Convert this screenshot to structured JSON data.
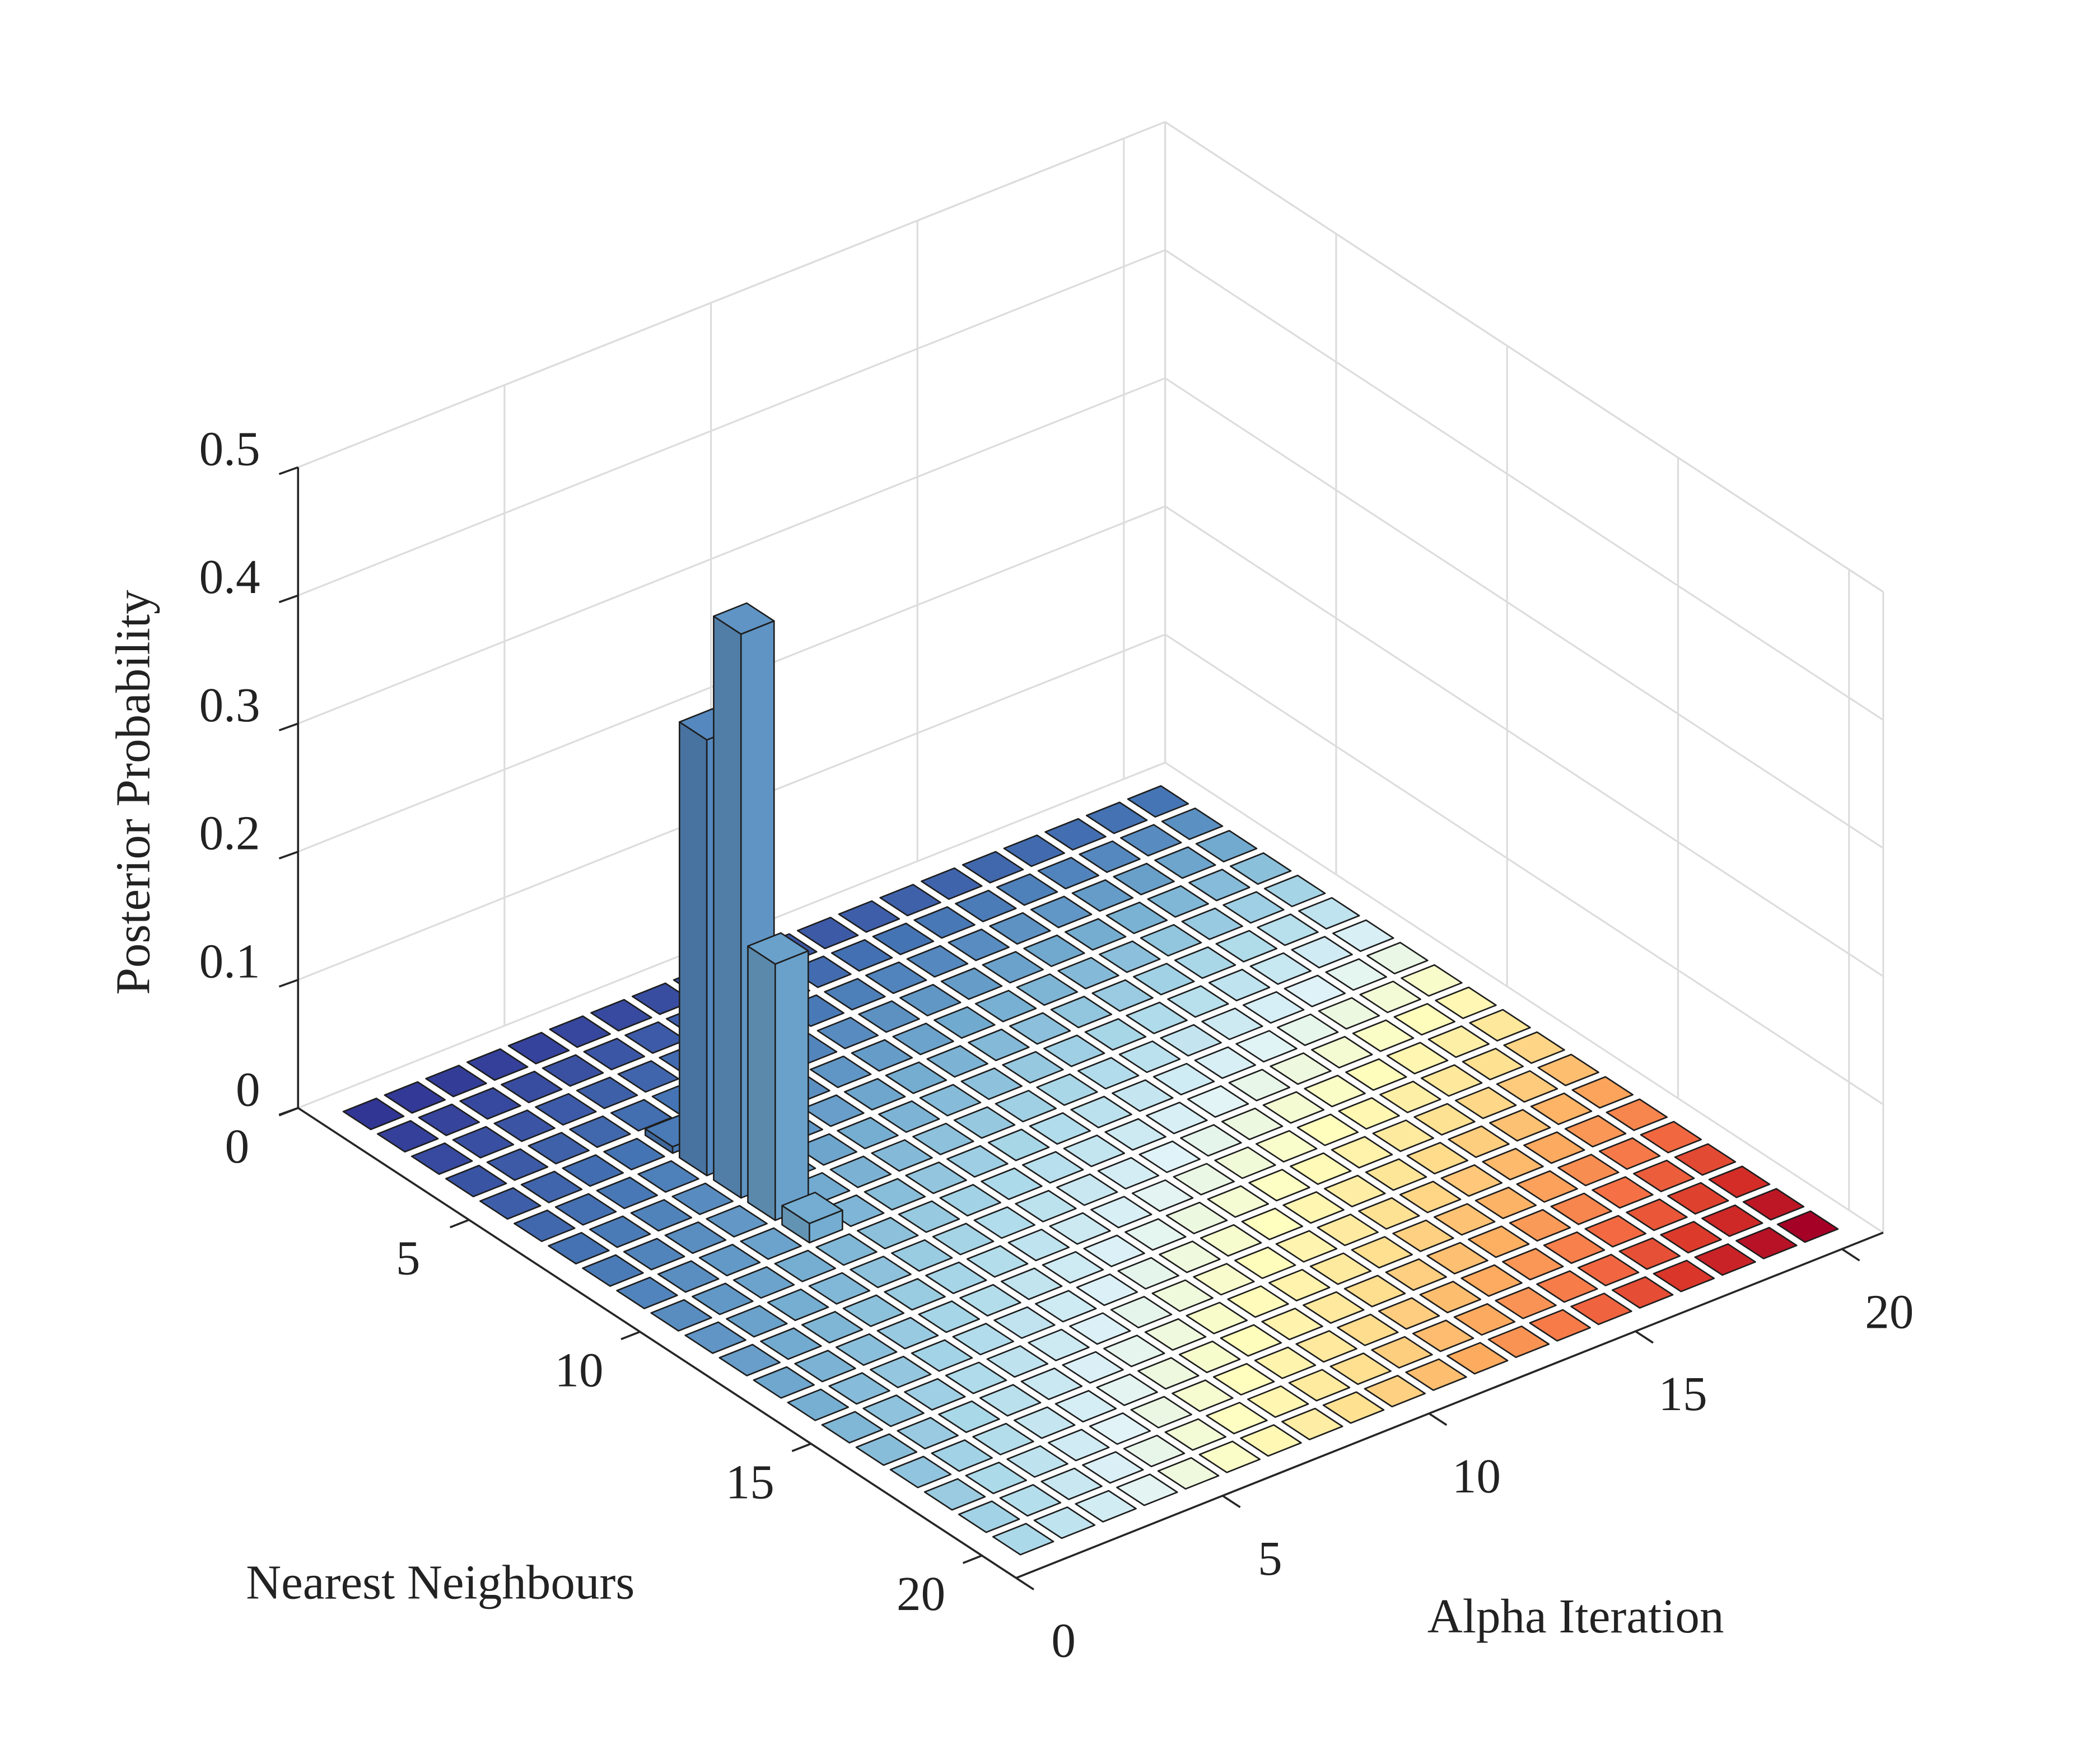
{
  "chart_data": {
    "type": "bar3",
    "xlabel": "Alpha Iteration",
    "ylabel": "Nearest Neighbours",
    "zlabel": "Posterior Probability",
    "x": [
      1,
      2,
      3,
      4,
      5,
      6,
      7,
      8,
      9,
      10,
      11,
      12,
      13,
      14,
      15,
      16,
      17,
      18,
      19,
      20
    ],
    "y": [
      1,
      2,
      3,
      4,
      5,
      6,
      7,
      8,
      9,
      10,
      11,
      12,
      13,
      14,
      15,
      16,
      17,
      18,
      19,
      20
    ],
    "z": [
      [
        0,
        0,
        0,
        0,
        0,
        0,
        0,
        0,
        0,
        0,
        0,
        0,
        0,
        0,
        0,
        0,
        0,
        0,
        0,
        0
      ],
      [
        0,
        0,
        0,
        0,
        0,
        0,
        0,
        0,
        0,
        0,
        0,
        0,
        0,
        0,
        0,
        0,
        0,
        0,
        0,
        0
      ],
      [
        0,
        0,
        0,
        0,
        0,
        0,
        0,
        0,
        0,
        0,
        0,
        0,
        0,
        0,
        0,
        0,
        0,
        0,
        0,
        0
      ],
      [
        0,
        0,
        0,
        0,
        0,
        0,
        0,
        0,
        0,
        0,
        0,
        0,
        0,
        0,
        0,
        0,
        0,
        0,
        0,
        0
      ],
      [
        0,
        0,
        0,
        0,
        0.005,
        0,
        0,
        0,
        0,
        0,
        0,
        0,
        0,
        0,
        0,
        0,
        0,
        0,
        0,
        0
      ],
      [
        0,
        0,
        0,
        0,
        0.34,
        0,
        0,
        0,
        0,
        0,
        0,
        0,
        0,
        0,
        0,
        0,
        0,
        0,
        0,
        0
      ],
      [
        0,
        0,
        0,
        0,
        0.44,
        0,
        0,
        0,
        0,
        0,
        0,
        0,
        0,
        0,
        0,
        0,
        0,
        0,
        0,
        0
      ],
      [
        0,
        0,
        0,
        0,
        0.2,
        0,
        0,
        0,
        0,
        0,
        0,
        0,
        0,
        0,
        0,
        0,
        0,
        0,
        0,
        0
      ],
      [
        0,
        0,
        0,
        0,
        0.015,
        0,
        0,
        0,
        0,
        0,
        0,
        0,
        0,
        0,
        0,
        0,
        0,
        0,
        0,
        0
      ],
      [
        0,
        0,
        0,
        0,
        0,
        0,
        0,
        0,
        0,
        0,
        0,
        0,
        0,
        0,
        0,
        0,
        0,
        0,
        0,
        0
      ],
      [
        0,
        0,
        0,
        0,
        0,
        0,
        0,
        0,
        0,
        0,
        0,
        0,
        0,
        0,
        0,
        0,
        0,
        0,
        0,
        0
      ],
      [
        0,
        0,
        0,
        0,
        0,
        0,
        0,
        0,
        0,
        0,
        0,
        0,
        0,
        0,
        0,
        0,
        0,
        0,
        0,
        0
      ],
      [
        0,
        0,
        0,
        0,
        0,
        0,
        0,
        0,
        0,
        0,
        0,
        0,
        0,
        0,
        0,
        0,
        0,
        0,
        0,
        0
      ],
      [
        0,
        0,
        0,
        0,
        0,
        0,
        0,
        0,
        0,
        0,
        0,
        0,
        0,
        0,
        0,
        0,
        0,
        0,
        0,
        0
      ],
      [
        0,
        0,
        0,
        0,
        0,
        0,
        0,
        0,
        0,
        0,
        0,
        0,
        0,
        0,
        0,
        0,
        0,
        0,
        0,
        0
      ],
      [
        0,
        0,
        0,
        0,
        0,
        0,
        0,
        0,
        0,
        0,
        0,
        0,
        0,
        0,
        0,
        0,
        0,
        0,
        0,
        0
      ],
      [
        0,
        0,
        0,
        0,
        0,
        0,
        0,
        0,
        0,
        0,
        0,
        0,
        0,
        0,
        0,
        0,
        0,
        0,
        0,
        0
      ],
      [
        0,
        0,
        0,
        0,
        0,
        0,
        0,
        0,
        0,
        0,
        0,
        0,
        0,
        0,
        0,
        0,
        0,
        0,
        0,
        0
      ],
      [
        0,
        0,
        0,
        0,
        0,
        0,
        0,
        0,
        0,
        0,
        0,
        0,
        0,
        0,
        0,
        0,
        0,
        0,
        0,
        0
      ],
      [
        0,
        0,
        0,
        0,
        0,
        0,
        0,
        0,
        0,
        0,
        0,
        0,
        0,
        0,
        0,
        0,
        0,
        0,
        0,
        0
      ]
    ],
    "xlim": [
      0,
      21
    ],
    "ylim": [
      0,
      21
    ],
    "zlim": [
      0,
      0.5
    ],
    "xticks": [
      0,
      5,
      10,
      15,
      20
    ],
    "yticks": [
      0,
      5,
      10,
      15,
      20
    ],
    "zticks": [
      0,
      0.1,
      0.2,
      0.3,
      0.4,
      0.5
    ],
    "grid": true,
    "colormap": [
      "#313695",
      "#4575b4",
      "#74add1",
      "#abd9e9",
      "#e0f3f8",
      "#ffffbf",
      "#fee090",
      "#fdae61",
      "#f46d43",
      "#d73027",
      "#a50026"
    ]
  }
}
